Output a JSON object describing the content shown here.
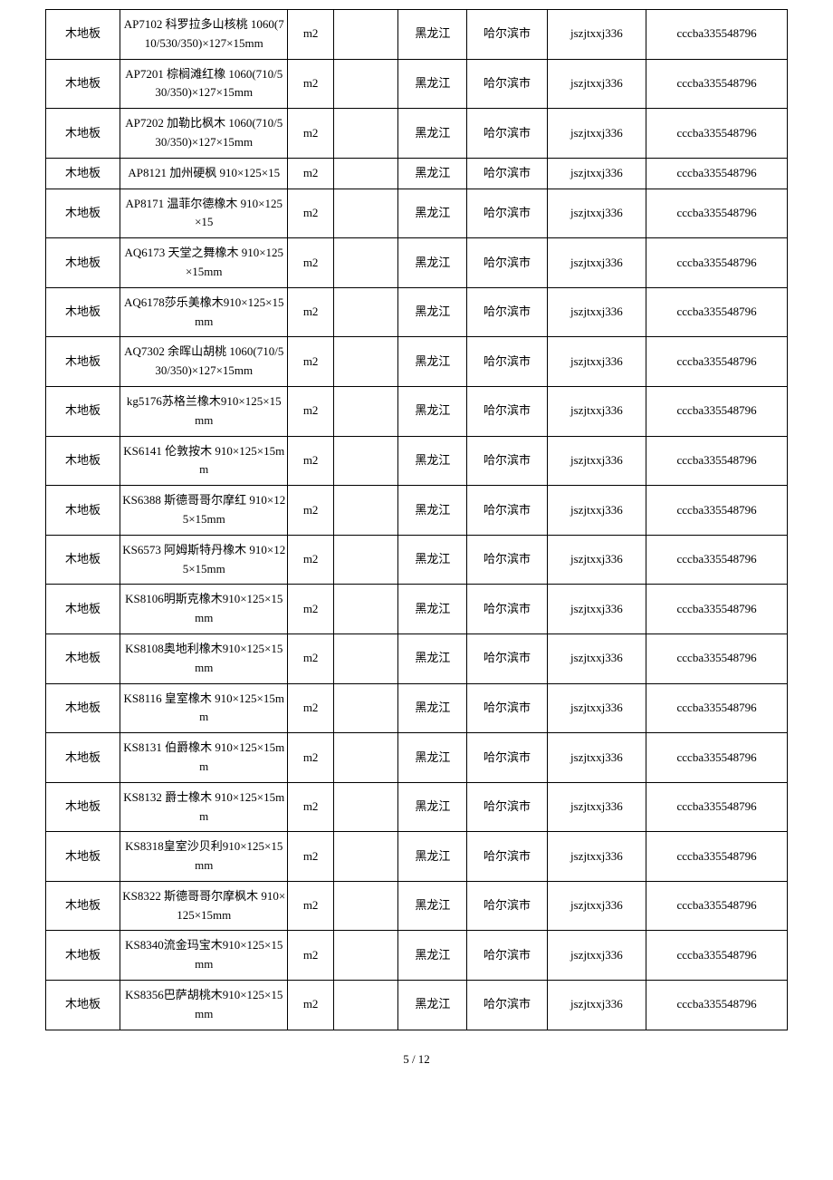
{
  "table": {
    "columns": [
      {
        "class": "col-0"
      },
      {
        "class": "col-1"
      },
      {
        "class": "col-2"
      },
      {
        "class": "col-3"
      },
      {
        "class": "col-4"
      },
      {
        "class": "col-5"
      },
      {
        "class": "col-6"
      },
      {
        "class": "col-7"
      }
    ],
    "rows": [
      [
        "木地板",
        "AP7102 科罗拉多山核桃 1060(710/530/350)×127×15mm",
        "m2",
        "",
        "黑龙江",
        "哈尔滨市",
        "jszjtxxj336",
        "cccba335548796"
      ],
      [
        "木地板",
        "AP7201 棕榈滩红橡 1060(710/530/350)×127×15mm",
        "m2",
        "",
        "黑龙江",
        "哈尔滨市",
        "jszjtxxj336",
        "cccba335548796"
      ],
      [
        "木地板",
        "AP7202 加勒比枫木 1060(710/530/350)×127×15mm",
        "m2",
        "",
        "黑龙江",
        "哈尔滨市",
        "jszjtxxj336",
        "cccba335548796"
      ],
      [
        "木地板",
        "AP8121 加州硬枫 910×125×15",
        "m2",
        "",
        "黑龙江",
        "哈尔滨市",
        "jszjtxxj336",
        "cccba335548796"
      ],
      [
        "木地板",
        "AP8171 温菲尔德橡木 910×125×15",
        "m2",
        "",
        "黑龙江",
        "哈尔滨市",
        "jszjtxxj336",
        "cccba335548796"
      ],
      [
        "木地板",
        "AQ6173 天堂之舞橡木 910×125×15mm",
        "m2",
        "",
        "黑龙江",
        "哈尔滨市",
        "jszjtxxj336",
        "cccba335548796"
      ],
      [
        "木地板",
        "AQ6178莎乐美橡木910×125×15mm",
        "m2",
        "",
        "黑龙江",
        "哈尔滨市",
        "jszjtxxj336",
        "cccba335548796"
      ],
      [
        "木地板",
        "AQ7302 余晖山胡桃 1060(710/530/350)×127×15mm",
        "m2",
        "",
        "黑龙江",
        "哈尔滨市",
        "jszjtxxj336",
        "cccba335548796"
      ],
      [
        "木地板",
        "kg5176苏格兰橡木910×125×15mm",
        "m2",
        "",
        "黑龙江",
        "哈尔滨市",
        "jszjtxxj336",
        "cccba335548796"
      ],
      [
        "木地板",
        "KS6141 伦敦按木 910×125×15mm",
        "m2",
        "",
        "黑龙江",
        "哈尔滨市",
        "jszjtxxj336",
        "cccba335548796"
      ],
      [
        "木地板",
        "KS6388 斯德哥哥尔摩红 910×125×15mm",
        "m2",
        "",
        "黑龙江",
        "哈尔滨市",
        "jszjtxxj336",
        "cccba335548796"
      ],
      [
        "木地板",
        "KS6573 阿姆斯特丹橡木 910×125×15mm",
        "m2",
        "",
        "黑龙江",
        "哈尔滨市",
        "jszjtxxj336",
        "cccba335548796"
      ],
      [
        "木地板",
        "KS8106明斯克橡木910×125×15mm",
        "m2",
        "",
        "黑龙江",
        "哈尔滨市",
        "jszjtxxj336",
        "cccba335548796"
      ],
      [
        "木地板",
        "KS8108奥地利橡木910×125×15mm",
        "m2",
        "",
        "黑龙江",
        "哈尔滨市",
        "jszjtxxj336",
        "cccba335548796"
      ],
      [
        "木地板",
        "KS8116 皇室橡木 910×125×15mm",
        "m2",
        "",
        "黑龙江",
        "哈尔滨市",
        "jszjtxxj336",
        "cccba335548796"
      ],
      [
        "木地板",
        "KS8131 伯爵橡木 910×125×15mm",
        "m2",
        "",
        "黑龙江",
        "哈尔滨市",
        "jszjtxxj336",
        "cccba335548796"
      ],
      [
        "木地板",
        "KS8132 爵士橡木 910×125×15mm",
        "m2",
        "",
        "黑龙江",
        "哈尔滨市",
        "jszjtxxj336",
        "cccba335548796"
      ],
      [
        "木地板",
        "KS8318皇室沙贝利910×125×15mm",
        "m2",
        "",
        "黑龙江",
        "哈尔滨市",
        "jszjtxxj336",
        "cccba335548796"
      ],
      [
        "木地板",
        "KS8322 斯德哥哥尔摩枫木 910×125×15mm",
        "m2",
        "",
        "黑龙江",
        "哈尔滨市",
        "jszjtxxj336",
        "cccba335548796"
      ],
      [
        "木地板",
        "KS8340流金玛宝木910×125×15mm",
        "m2",
        "",
        "黑龙江",
        "哈尔滨市",
        "jszjtxxj336",
        "cccba335548796"
      ],
      [
        "木地板",
        "KS8356巴萨胡桃木910×125×15mm",
        "m2",
        "",
        "黑龙江",
        "哈尔滨市",
        "jszjtxxj336",
        "cccba335548796"
      ]
    ]
  },
  "footer": "5 / 12"
}
